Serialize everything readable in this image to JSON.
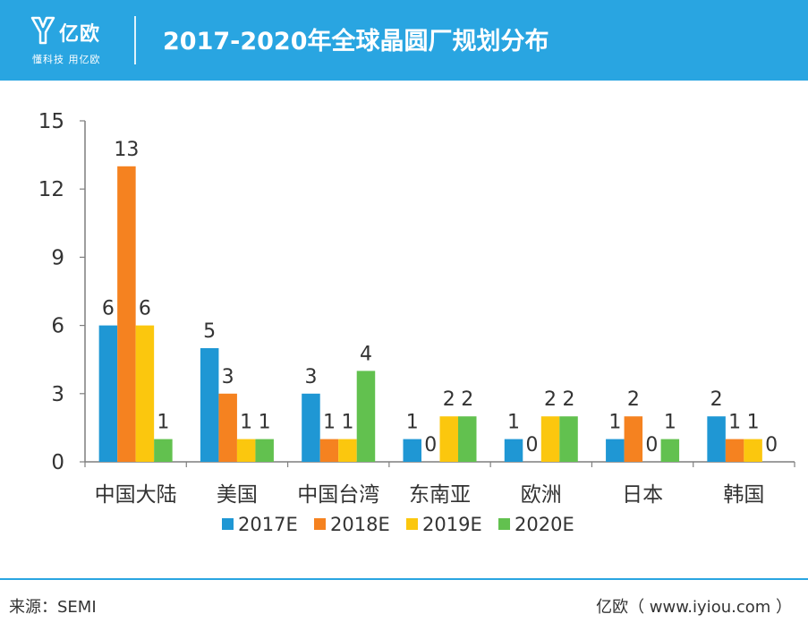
{
  "header": {
    "logo_name": "亿欧",
    "logo_slogan": "懂科技 用亿欧",
    "title": "2017-2020年全球晶圆厂规划分布"
  },
  "chart_data": {
    "type": "bar",
    "title": "2017-2020年全球晶圆厂规划分布",
    "xlabel": "",
    "ylabel": "",
    "ylim": [
      0,
      15
    ],
    "yticks": [
      0,
      3,
      6,
      9,
      12,
      15
    ],
    "categories": [
      "中国大陆",
      "美国",
      "中国台湾",
      "东南亚",
      "欧洲",
      "日本",
      "韩国"
    ],
    "series": [
      {
        "name": "2017E",
        "color": "#1f97d4",
        "values": [
          6,
          5,
          3,
          1,
          1,
          1,
          2
        ]
      },
      {
        "name": "2018E",
        "color": "#f58220",
        "values": [
          13,
          3,
          1,
          0,
          0,
          2,
          1
        ]
      },
      {
        "name": "2019E",
        "color": "#fbc70e",
        "values": [
          6,
          1,
          1,
          2,
          2,
          0,
          1
        ]
      },
      {
        "name": "2020E",
        "color": "#62c14f",
        "values": [
          1,
          1,
          4,
          2,
          2,
          1,
          0
        ]
      }
    ],
    "legend_position": "bottom"
  },
  "footer": {
    "source": "来源：SEMI",
    "credit": "亿欧（ www.iyiou.com ）"
  },
  "colors": {
    "brand": "#29a5e1",
    "axis": "#7f7f7f",
    "text": "#333333"
  }
}
